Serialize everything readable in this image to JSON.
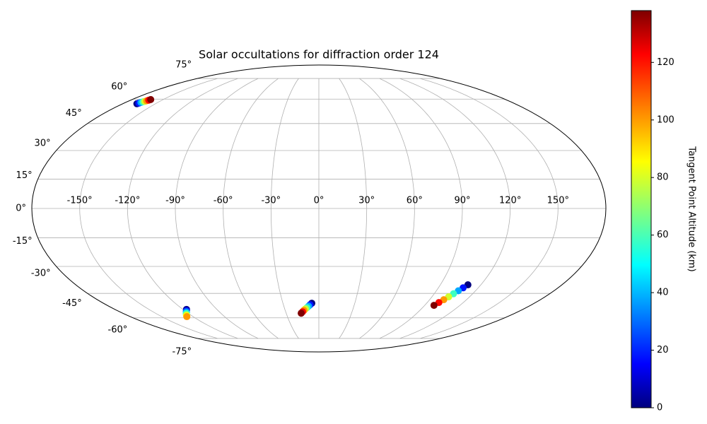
{
  "chart_data": {
    "type": "scatter",
    "projection": "mollweide",
    "title": "Solar occultations for diffraction order 124",
    "xlim": [
      -180,
      180
    ],
    "ylim": [
      -90,
      90
    ],
    "xticks": [
      {
        "value": -150,
        "label": "-150°"
      },
      {
        "value": -120,
        "label": "-120°"
      },
      {
        "value": -90,
        "label": "-90°"
      },
      {
        "value": -60,
        "label": "-60°"
      },
      {
        "value": -30,
        "label": "-30°"
      },
      {
        "value": 0,
        "label": "0°"
      },
      {
        "value": 30,
        "label": "30°"
      },
      {
        "value": 60,
        "label": "60°"
      },
      {
        "value": 90,
        "label": "90°"
      },
      {
        "value": 120,
        "label": "120°"
      },
      {
        "value": 150,
        "label": "150°"
      }
    ],
    "yticks": [
      {
        "value": -75,
        "label": "-75°"
      },
      {
        "value": -60,
        "label": "-60°"
      },
      {
        "value": -45,
        "label": "-45°"
      },
      {
        "value": -30,
        "label": "-30°"
      },
      {
        "value": -15,
        "label": "-15°"
      },
      {
        "value": 0,
        "label": "0°"
      },
      {
        "value": 15,
        "label": "15°"
      },
      {
        "value": 30,
        "label": "30°"
      },
      {
        "value": 45,
        "label": "45°"
      },
      {
        "value": 60,
        "label": "60°"
      },
      {
        "value": 75,
        "label": "75°"
      }
    ],
    "grid": true,
    "colormap": "jet",
    "colorbar": {
      "label": "Tangent Point Altitude (km)",
      "clim": [
        0,
        138
      ],
      "ticks": [
        0,
        20,
        40,
        60,
        80,
        100,
        120
      ]
    },
    "series": [
      {
        "x": [
          -167,
          -166.3,
          -165.6,
          -164.9,
          -164.1,
          -163.4,
          -162.7,
          -162
        ],
        "y": [
          57,
          57.4,
          57.8,
          58.2,
          58.5,
          58.9,
          59.3,
          59.7
        ],
        "c": [
          0,
          20,
          40,
          60,
          80,
          100,
          120,
          138
        ]
      },
      {
        "x": [
          -116.8,
          -118.1,
          -119.4,
          -120.7,
          -122.1,
          -123.4,
          -124.7,
          -126
        ],
        "y": [
          -54.6,
          -55.3,
          -55.9,
          -56.6,
          -57.2,
          -57.9,
          -58.5,
          -59.2
        ],
        "c": [
          0,
          14,
          29,
          43,
          57,
          71,
          86,
          100
        ]
      },
      {
        "x": [
          -5.9,
          -7.4,
          -8.8,
          -10.3,
          -11.8,
          -13.3,
          -14.7,
          -16.2
        ],
        "y": [
          -50.8,
          -51.7,
          -52.6,
          -53.5,
          -54.3,
          -55.2,
          -56.1,
          -57
        ],
        "c": [
          0,
          20,
          40,
          60,
          80,
          100,
          120,
          138
        ]
      },
      {
        "x": [
          110.4,
          108.6,
          106.8,
          105.0,
          103.3,
          101.5,
          99.7,
          97.9
        ],
        "y": [
          -40.1,
          -41.8,
          -43.5,
          -45.2,
          -47.0,
          -48.7,
          -50.4,
          -52.1
        ],
        "c": [
          0,
          20,
          40,
          60,
          80,
          100,
          120,
          138
        ]
      }
    ]
  }
}
